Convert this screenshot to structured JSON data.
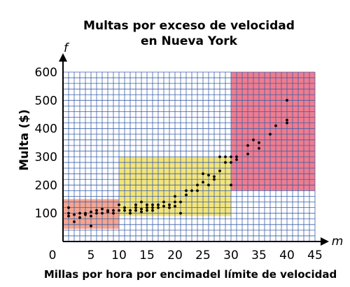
{
  "chart_data": {
    "type": "scatter",
    "title": [
      "Multas por exceso de velocidad",
      "en Nueva York"
    ],
    "xlabel": "Millas por hora por encimadel límite de velocidad",
    "ylabel": "Multa ($)",
    "x_var": "m",
    "y_var": "f",
    "xlim": [
      0,
      45
    ],
    "ylim": [
      0,
      600
    ],
    "x_ticks": [
      "0",
      "5",
      "10",
      "15",
      "20",
      "25",
      "30",
      "35",
      "40",
      "45"
    ],
    "y_ticks": [
      "100",
      "200",
      "300",
      "400",
      "500",
      "600"
    ],
    "grid": true,
    "grid_step": {
      "x": 1,
      "y": 20
    },
    "grid_color": "#3b5fa8",
    "regions": [
      {
        "x": [
          0,
          10
        ],
        "y": [
          45,
          150
        ],
        "color": "#f5a58f"
      },
      {
        "x": [
          10,
          30
        ],
        "y": [
          90,
          300
        ],
        "color": "#f4e57a"
      },
      {
        "x": [
          30,
          45
        ],
        "y": [
          180,
          600
        ],
        "color": "#f07c8e"
      }
    ],
    "points": [
      [
        1,
        120
      ],
      [
        1,
        100
      ],
      [
        1,
        90
      ],
      [
        2,
        95
      ],
      [
        2,
        70
      ],
      [
        3,
        100
      ],
      [
        3,
        85
      ],
      [
        4,
        100
      ],
      [
        4,
        95
      ],
      [
        5,
        105
      ],
      [
        5,
        90
      ],
      [
        5,
        55
      ],
      [
        6,
        110
      ],
      [
        6,
        100
      ],
      [
        7,
        115
      ],
      [
        7,
        100
      ],
      [
        8,
        110
      ],
      [
        8,
        105
      ],
      [
        9,
        110
      ],
      [
        9,
        100
      ],
      [
        10,
        130
      ],
      [
        10,
        110
      ],
      [
        11,
        120
      ],
      [
        11,
        110
      ],
      [
        12,
        110
      ],
      [
        12,
        100
      ],
      [
        13,
        130
      ],
      [
        13,
        120
      ],
      [
        13,
        110
      ],
      [
        14,
        140
      ],
      [
        14,
        115
      ],
      [
        14,
        105
      ],
      [
        15,
        130
      ],
      [
        15,
        120
      ],
      [
        15,
        110
      ],
      [
        16,
        130
      ],
      [
        16,
        120
      ],
      [
        16,
        110
      ],
      [
        17,
        130
      ],
      [
        17,
        120
      ],
      [
        18,
        140
      ],
      [
        18,
        125
      ],
      [
        19,
        130
      ],
      [
        19,
        120
      ],
      [
        20,
        160
      ],
      [
        20,
        140
      ],
      [
        20,
        125
      ],
      [
        21,
        140
      ],
      [
        21,
        100
      ],
      [
        22,
        180
      ],
      [
        22,
        165
      ],
      [
        23,
        180
      ],
      [
        24,
        180
      ],
      [
        24,
        200
      ],
      [
        25,
        240
      ],
      [
        25,
        210
      ],
      [
        26,
        235
      ],
      [
        26,
        200
      ],
      [
        27,
        230
      ],
      [
        27,
        220
      ],
      [
        28,
        300
      ],
      [
        28,
        250
      ],
      [
        29,
        300
      ],
      [
        29,
        280
      ],
      [
        30,
        300
      ],
      [
        30,
        280
      ],
      [
        30,
        200
      ],
      [
        31,
        300
      ],
      [
        31,
        290
      ],
      [
        33,
        340
      ],
      [
        33,
        310
      ],
      [
        34,
        360
      ],
      [
        35,
        350
      ],
      [
        35,
        330
      ],
      [
        37,
        380
      ],
      [
        38,
        410
      ],
      [
        40,
        500
      ],
      [
        40,
        430
      ],
      [
        40,
        420
      ]
    ],
    "point_color": "#000000"
  }
}
